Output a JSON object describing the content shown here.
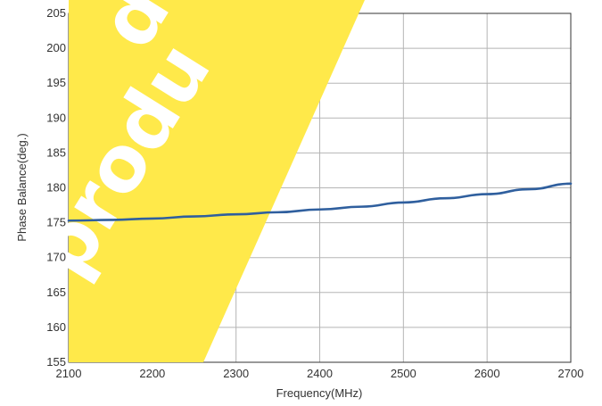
{
  "colors": {
    "background": "#ffffff",
    "grid": "#b5b5b5",
    "line": "#2f5f9e",
    "watermark_band": "#ffe94a"
  },
  "chart_data": {
    "type": "line",
    "title": "",
    "xlabel": "Frequency(MHz)",
    "ylabel": "Phase Balance(deg.)",
    "xlim": [
      2100,
      2700
    ],
    "ylim": [
      155,
      205
    ],
    "x_ticks": [
      "2100",
      "2200",
      "2300",
      "2400",
      "2500",
      "2600",
      "2700"
    ],
    "y_ticks": [
      "155",
      "160",
      "165",
      "170",
      "175",
      "180",
      "185",
      "190",
      "195",
      "200",
      "205"
    ],
    "grid": true,
    "legend": "none",
    "series": [
      {
        "x": [
          2100,
          2150,
          2200,
          2250,
          2300,
          2350,
          2400,
          2450,
          2500,
          2550,
          2600,
          2650,
          2700
        ],
        "y": [
          175.3,
          175.4,
          175.6,
          175.9,
          176.2,
          176.5,
          176.9,
          177.3,
          177.9,
          178.5,
          179.1,
          179.8,
          180.6
        ]
      }
    ]
  },
  "watermark": {
    "lines": [
      "de",
      "a produ"
    ]
  }
}
